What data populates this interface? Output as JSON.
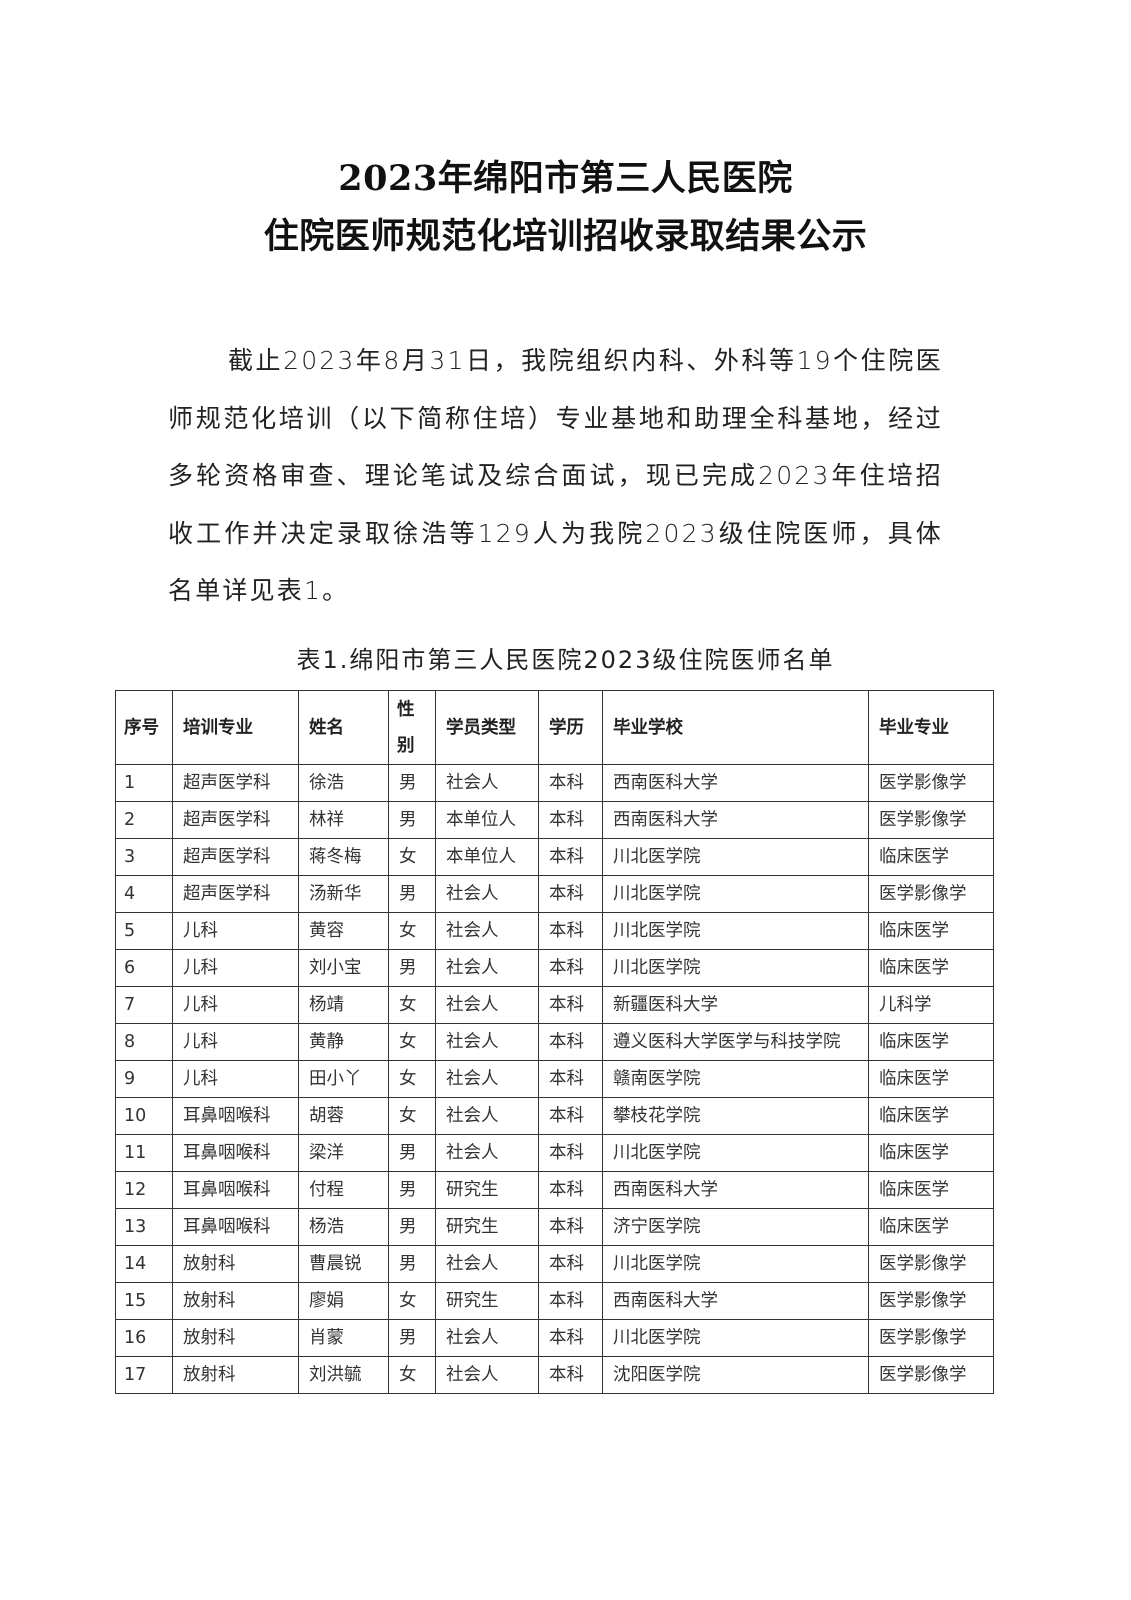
{
  "document": {
    "title_line1": "2023年绵阳市第三人民医院",
    "title_line2": "住院医师规范化培训招收录取结果公示",
    "paragraph": "截止2023年8月31日，我院组织内科、外科等19个住院医师规范化培训（以下简称住培）专业基地和助理全科基地，经过多轮资格审查、理论笔试及综合面试，现已完成2023年住培招收工作并决定录取徐浩等129人为我院2023级住院医师，具体名单详见表1。",
    "table_caption": "表1.绵阳市第三人民医院2023级住院医师名单"
  },
  "table": {
    "headers": [
      "序号",
      "培训专业",
      "姓名",
      "性别",
      "学员类型",
      "学历",
      "毕业学校",
      "毕业专业"
    ],
    "rows": [
      [
        "1",
        "超声医学科",
        "徐浩",
        "男",
        "社会人",
        "本科",
        "西南医科大学",
        "医学影像学"
      ],
      [
        "2",
        "超声医学科",
        "林祥",
        "男",
        "本单位人",
        "本科",
        "西南医科大学",
        "医学影像学"
      ],
      [
        "3",
        "超声医学科",
        "蒋冬梅",
        "女",
        "本单位人",
        "本科",
        "川北医学院",
        "临床医学"
      ],
      [
        "4",
        "超声医学科",
        "汤新华",
        "男",
        "社会人",
        "本科",
        "川北医学院",
        "医学影像学"
      ],
      [
        "5",
        "儿科",
        "黄容",
        "女",
        "社会人",
        "本科",
        "川北医学院",
        "临床医学"
      ],
      [
        "6",
        "儿科",
        "刘小宝",
        "男",
        "社会人",
        "本科",
        "川北医学院",
        "临床医学"
      ],
      [
        "7",
        "儿科",
        "杨靖",
        "女",
        "社会人",
        "本科",
        "新疆医科大学",
        "儿科学"
      ],
      [
        "8",
        "儿科",
        "黄静",
        "女",
        "社会人",
        "本科",
        "遵义医科大学医学与科技学院",
        "临床医学"
      ],
      [
        "9",
        "儿科",
        "田小丫",
        "女",
        "社会人",
        "本科",
        "赣南医学院",
        "临床医学"
      ],
      [
        "10",
        "耳鼻咽喉科",
        "胡蓉",
        "女",
        "社会人",
        "本科",
        "攀枝花学院",
        "临床医学"
      ],
      [
        "11",
        "耳鼻咽喉科",
        "梁洋",
        "男",
        "社会人",
        "本科",
        "川北医学院",
        "临床医学"
      ],
      [
        "12",
        "耳鼻咽喉科",
        "付程",
        "男",
        "研究生",
        "本科",
        "西南医科大学",
        "临床医学"
      ],
      [
        "13",
        "耳鼻咽喉科",
        "杨浩",
        "男",
        "研究生",
        "本科",
        "济宁医学院",
        "临床医学"
      ],
      [
        "14",
        "放射科",
        "曹晨锐",
        "男",
        "社会人",
        "本科",
        "川北医学院",
        "医学影像学"
      ],
      [
        "15",
        "放射科",
        "廖娟",
        "女",
        "研究生",
        "本科",
        "西南医科大学",
        "医学影像学"
      ],
      [
        "16",
        "放射科",
        "肖蒙",
        "男",
        "社会人",
        "本科",
        "川北医学院",
        "医学影像学"
      ],
      [
        "17",
        "放射科",
        "刘洪毓",
        "女",
        "社会人",
        "本科",
        "沈阳医学院",
        "医学影像学"
      ]
    ]
  }
}
